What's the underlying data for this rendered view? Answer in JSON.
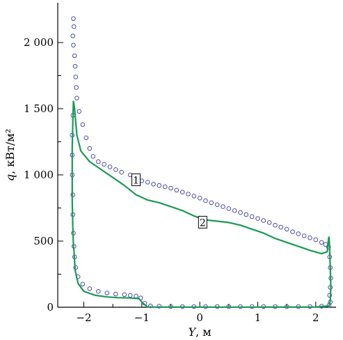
{
  "chart_data": {
    "type": "scatter",
    "title": "",
    "xlabel": {
      "var": "Y",
      "unit": ", м"
    },
    "ylabel": {
      "var": "q",
      "unit": ", кВт/м²"
    },
    "xlim": [
      -2.45,
      2.35
    ],
    "ylim": [
      0,
      2300
    ],
    "xticks": [
      -2,
      -1,
      0,
      1,
      2
    ],
    "xtick_labels": [
      "−2",
      "−1",
      "0",
      "1",
      "2"
    ],
    "yticks": [
      0,
      500,
      1000,
      1500,
      2000
    ],
    "ytick_labels": [
      "0",
      "500",
      "1 000",
      "1 500",
      "2 000"
    ],
    "grid": false,
    "series": [
      {
        "name": "1",
        "style": "markers",
        "marker": "circle",
        "color": "#4d4da8",
        "label_at": [
          -1.1,
          960
        ],
        "points": [
          [
            -2.18,
            2180
          ],
          [
            -2.17,
            2120
          ],
          [
            -2.19,
            2050
          ],
          [
            -2.18,
            1980
          ],
          [
            -2.16,
            1900
          ],
          [
            -2.15,
            1820
          ],
          [
            -2.14,
            1740
          ],
          [
            -2.13,
            1660
          ],
          [
            -2.12,
            1580
          ],
          [
            -2.08,
            1480
          ],
          [
            -2.02,
            1380
          ],
          [
            -1.96,
            1280
          ],
          [
            -1.9,
            1200
          ],
          [
            -1.84,
            1140
          ],
          [
            -1.75,
            1100
          ],
          [
            -1.65,
            1080
          ],
          [
            -1.55,
            1060
          ],
          [
            -1.45,
            1040
          ],
          [
            -1.35,
            1020
          ],
          [
            -1.2,
            1000
          ],
          [
            -1.0,
            955
          ],
          [
            -0.9,
            945
          ],
          [
            -0.8,
            930
          ],
          [
            -0.7,
            920
          ],
          [
            -0.6,
            910
          ],
          [
            -0.5,
            900
          ],
          [
            -0.4,
            885
          ],
          [
            -0.3,
            870
          ],
          [
            -0.2,
            855
          ],
          [
            -0.1,
            840
          ],
          [
            0.0,
            825
          ],
          [
            0.1,
            805
          ],
          [
            0.2,
            790
          ],
          [
            0.3,
            775
          ],
          [
            0.4,
            760
          ],
          [
            0.5,
            745
          ],
          [
            0.6,
            730
          ],
          [
            0.7,
            715
          ],
          [
            0.8,
            700
          ],
          [
            0.9,
            685
          ],
          [
            1.0,
            670
          ],
          [
            1.1,
            655
          ],
          [
            1.2,
            640
          ],
          [
            1.3,
            620
          ],
          [
            1.4,
            605
          ],
          [
            1.5,
            590
          ],
          [
            1.6,
            570
          ],
          [
            1.7,
            555
          ],
          [
            1.8,
            540
          ],
          [
            1.9,
            525
          ],
          [
            2.0,
            510
          ],
          [
            2.1,
            490
          ],
          [
            2.17,
            475
          ],
          [
            2.22,
            455
          ],
          [
            2.24,
            380
          ],
          [
            2.25,
            300
          ],
          [
            2.26,
            220
          ],
          [
            2.25,
            150
          ],
          [
            2.24,
            90
          ],
          [
            2.25,
            40
          ],
          [
            2.23,
            15
          ],
          [
            2.1,
            8
          ],
          [
            1.9,
            6
          ],
          [
            1.7,
            5
          ],
          [
            1.5,
            5
          ],
          [
            1.3,
            5
          ],
          [
            1.1,
            6
          ],
          [
            0.9,
            6
          ],
          [
            0.7,
            5
          ],
          [
            0.5,
            5
          ],
          [
            0.3,
            5
          ],
          [
            0.1,
            5
          ],
          [
            -0.1,
            5
          ],
          [
            -0.3,
            5
          ],
          [
            -0.5,
            6
          ],
          [
            -0.7,
            8
          ],
          [
            -0.85,
            10
          ],
          [
            -0.95,
            30
          ],
          [
            -1.02,
            70
          ],
          [
            -1.1,
            85
          ],
          [
            -1.2,
            90
          ],
          [
            -1.3,
            95
          ],
          [
            -1.45,
            100
          ],
          [
            -1.6,
            108
          ],
          [
            -1.75,
            120
          ],
          [
            -1.9,
            140
          ],
          [
            -2.02,
            175
          ],
          [
            -2.1,
            230
          ],
          [
            -2.14,
            300
          ],
          [
            -2.16,
            380
          ],
          [
            -2.17,
            460
          ],
          [
            -2.18,
            560
          ],
          [
            -2.19,
            700
          ],
          [
            -2.19,
            850
          ],
          [
            -2.2,
            1000
          ],
          [
            -2.2,
            1150
          ],
          [
            -2.2,
            1300
          ],
          [
            -2.19,
            1450
          ]
        ]
      },
      {
        "name": "2",
        "style": "line",
        "color": "#1a9a55",
        "label_at": [
          0.05,
          640
        ],
        "points": [
          [
            -2.18,
            1560
          ],
          [
            -2.16,
            1500
          ],
          [
            -2.12,
            1300
          ],
          [
            -2.05,
            1180
          ],
          [
            -1.9,
            1100
          ],
          [
            -1.7,
            1040
          ],
          [
            -1.5,
            980
          ],
          [
            -1.3,
            920
          ],
          [
            -1.1,
            850
          ],
          [
            -0.9,
            810
          ],
          [
            -0.7,
            790
          ],
          [
            -0.5,
            760
          ],
          [
            -0.3,
            730
          ],
          [
            -0.1,
            690
          ],
          [
            0.1,
            660
          ],
          [
            0.3,
            650
          ],
          [
            0.5,
            640
          ],
          [
            0.7,
            620
          ],
          [
            0.9,
            590
          ],
          [
            1.1,
            560
          ],
          [
            1.3,
            520
          ],
          [
            1.5,
            490
          ],
          [
            1.7,
            460
          ],
          [
            1.9,
            430
          ],
          [
            2.1,
            405
          ],
          [
            2.2,
            420
          ],
          [
            2.22,
            520
          ],
          [
            2.23,
            530
          ],
          [
            2.24,
            450
          ],
          [
            2.25,
            300
          ],
          [
            2.26,
            150
          ],
          [
            2.25,
            50
          ],
          [
            2.23,
            10
          ],
          [
            2.0,
            2
          ],
          [
            1.0,
            1
          ],
          [
            0.0,
            1
          ],
          [
            -0.9,
            2
          ],
          [
            -0.98,
            30
          ],
          [
            -1.05,
            65
          ],
          [
            -1.2,
            70
          ],
          [
            -1.4,
            72
          ],
          [
            -1.6,
            78
          ],
          [
            -1.8,
            90
          ],
          [
            -2.0,
            120
          ],
          [
            -2.1,
            180
          ],
          [
            -2.15,
            280
          ],
          [
            -2.17,
            430
          ],
          [
            -2.18,
            470
          ],
          [
            -2.19,
            600
          ],
          [
            -2.2,
            800
          ],
          [
            -2.2,
            1000
          ],
          [
            -2.2,
            1200
          ],
          [
            -2.19,
            1400
          ],
          [
            -2.18,
            1560
          ]
        ]
      }
    ]
  }
}
